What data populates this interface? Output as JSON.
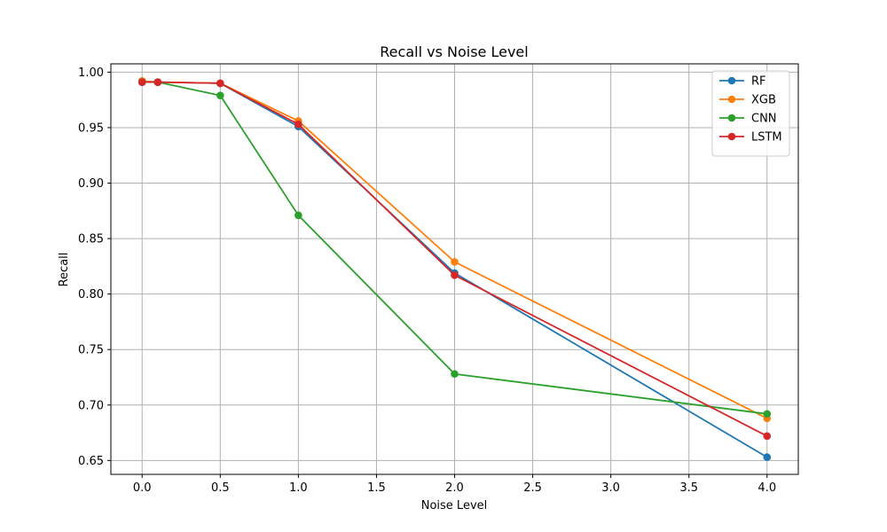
{
  "chart_data": {
    "type": "line",
    "title": "Recall vs Noise Level",
    "xlabel": "Noise Level",
    "ylabel": "Recall",
    "xlim": [
      -0.2,
      4.2
    ],
    "ylim": [
      0.6375,
      1.0075
    ],
    "xticks": [
      0.0,
      0.5,
      1.0,
      1.5,
      2.0,
      2.5,
      3.0,
      3.5,
      4.0
    ],
    "xtick_labels": [
      "0.0",
      "0.5",
      "1.0",
      "1.5",
      "2.0",
      "2.5",
      "3.0",
      "3.5",
      "4.0"
    ],
    "yticks": [
      0.65,
      0.7,
      0.75,
      0.8,
      0.85,
      0.9,
      0.95,
      1.0
    ],
    "ytick_labels": [
      "0.65",
      "0.70",
      "0.75",
      "0.80",
      "0.85",
      "0.90",
      "0.95",
      "1.00"
    ],
    "grid": true,
    "legend_position": "top-right",
    "x": [
      0.0,
      0.1,
      0.5,
      1.0,
      2.0,
      4.0
    ],
    "series": [
      {
        "name": "RF",
        "color": "#1f77b4",
        "values": [
          0.992,
          0.991,
          0.99,
          0.951,
          0.819,
          0.653
        ]
      },
      {
        "name": "XGB",
        "color": "#ff7f0e",
        "values": [
          0.992,
          0.991,
          0.99,
          0.956,
          0.829,
          0.688
        ]
      },
      {
        "name": "CNN",
        "color": "#2ca02c",
        "values": [
          0.991,
          0.991,
          0.979,
          0.871,
          0.728,
          0.692
        ]
      },
      {
        "name": "LSTM",
        "color": "#d62728",
        "values": [
          0.991,
          0.991,
          0.99,
          0.953,
          0.817,
          0.672
        ]
      }
    ]
  }
}
